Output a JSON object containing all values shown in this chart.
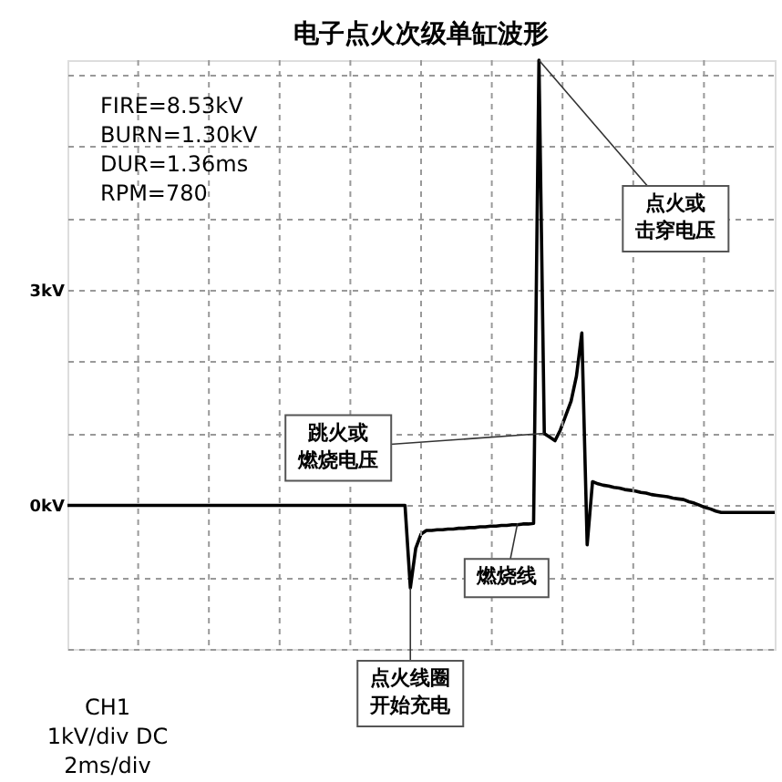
{
  "chart_data": {
    "type": "line",
    "title": "电子点火次级单缸波形",
    "categories": [
      null,
      null,
      null,
      null,
      null,
      null,
      null,
      null,
      null,
      null,
      null,
      null,
      null,
      null,
      null,
      null,
      null,
      null,
      null,
      null,
      null,
      null,
      null,
      null,
      null,
      null,
      null,
      null,
      null,
      null,
      null,
      null,
      null,
      null,
      null,
      null,
      null,
      null,
      null,
      null,
      null,
      null,
      null,
      null,
      null,
      null,
      null,
      null,
      null,
      null,
      null,
      null,
      null,
      null,
      null,
      null,
      null,
      null,
      null,
      null,
      null,
      null,
      null,
      null,
      null,
      null,
      null,
      null,
      null,
      null,
      null,
      null,
      null,
      null,
      null,
      null,
      null,
      null,
      null,
      null,
      null,
      null,
      null,
      null,
      null,
      null,
      null,
      null,
      null,
      null,
      null,
      null,
      null,
      null,
      null,
      null,
      null,
      null,
      null,
      null,
      null,
      null,
      null,
      null,
      null,
      null,
      null,
      null,
      null,
      null,
      null,
      null,
      null,
      null,
      null,
      null,
      null,
      null,
      null,
      null,
      null,
      null,
      null,
      null,
      null,
      null,
      null,
      null,
      null,
      null,
      null,
      null,
      null
    ],
    "series": [
      {
        "color": "#000000",
        "values": [
          0,
          0,
          0,
          0,
          0,
          0,
          0,
          0,
          0,
          0,
          0,
          0,
          0,
          0,
          0,
          0,
          0,
          0,
          0,
          0,
          0,
          0,
          0,
          0,
          0,
          0,
          0,
          0,
          0,
          0,
          0,
          0,
          0,
          0,
          0,
          0,
          0,
          0,
          0,
          0,
          0,
          0,
          0,
          0,
          0,
          0,
          0,
          0,
          0,
          0,
          0,
          0,
          0,
          0,
          0,
          0,
          0,
          0,
          0,
          0,
          0,
          0,
          0,
          0,
          -1.15,
          -0.6,
          -0.4,
          -0.35,
          -0.35,
          -0.34,
          -0.34,
          -0.33,
          -0.33,
          -0.32,
          -0.32,
          -0.31,
          -0.31,
          -0.3,
          -0.3,
          -0.29,
          -0.29,
          -0.28,
          -0.28,
          -0.27,
          -0.27,
          -0.26,
          -0.26,
          -0.25,
          6.2,
          1.0,
          0.95,
          0.9,
          1.05,
          1.25,
          1.45,
          1.8,
          2.4,
          -0.55,
          0.33,
          0.3,
          0.28,
          0.27,
          0.25,
          0.24,
          0.22,
          0.21,
          0.2,
          0.18,
          0.17,
          0.15,
          0.14,
          0.13,
          0.12,
          0.1,
          0.09,
          0.08,
          0.05,
          0.03,
          0.0,
          -0.03,
          -0.05,
          -0.08,
          -0.1,
          -0.1,
          -0.1,
          -0.1,
          -0.1,
          -0.1,
          -0.1,
          -0.1,
          -0.1,
          -0.1,
          -0.1
        ]
      }
    ],
    "ylim": [
      -2,
      6.2
    ],
    "yticks": [
      {
        "value": -2,
        "label": null
      },
      {
        "value": -1,
        "label": null
      },
      {
        "value": 0,
        "label": "0kV"
      },
      {
        "value": 1,
        "label": null
      },
      {
        "value": 2,
        "label": null
      },
      {
        "value": 3,
        "label": "3kV"
      },
      {
        "value": 4,
        "label": null
      },
      {
        "value": 5,
        "label": null
      },
      {
        "value": 6,
        "label": null
      }
    ],
    "tick_labels": "y",
    "grid": true,
    "marker": "none",
    "line_style": "solid",
    "annotations": [
      "FIRE=8.53kV\nBURN=1.30kV\nDUR=1.36ms\nRPM=780",
      "点火或击穿电压",
      "跳火或燃烧电压",
      {
        "text": "燃烧线",
        "y": -0.25
      },
      {
        "text": "点火线圈开始充电",
        "y": -1.15
      },
      "CH1\n1kV/div DC\n2ms/div"
    ]
  }
}
